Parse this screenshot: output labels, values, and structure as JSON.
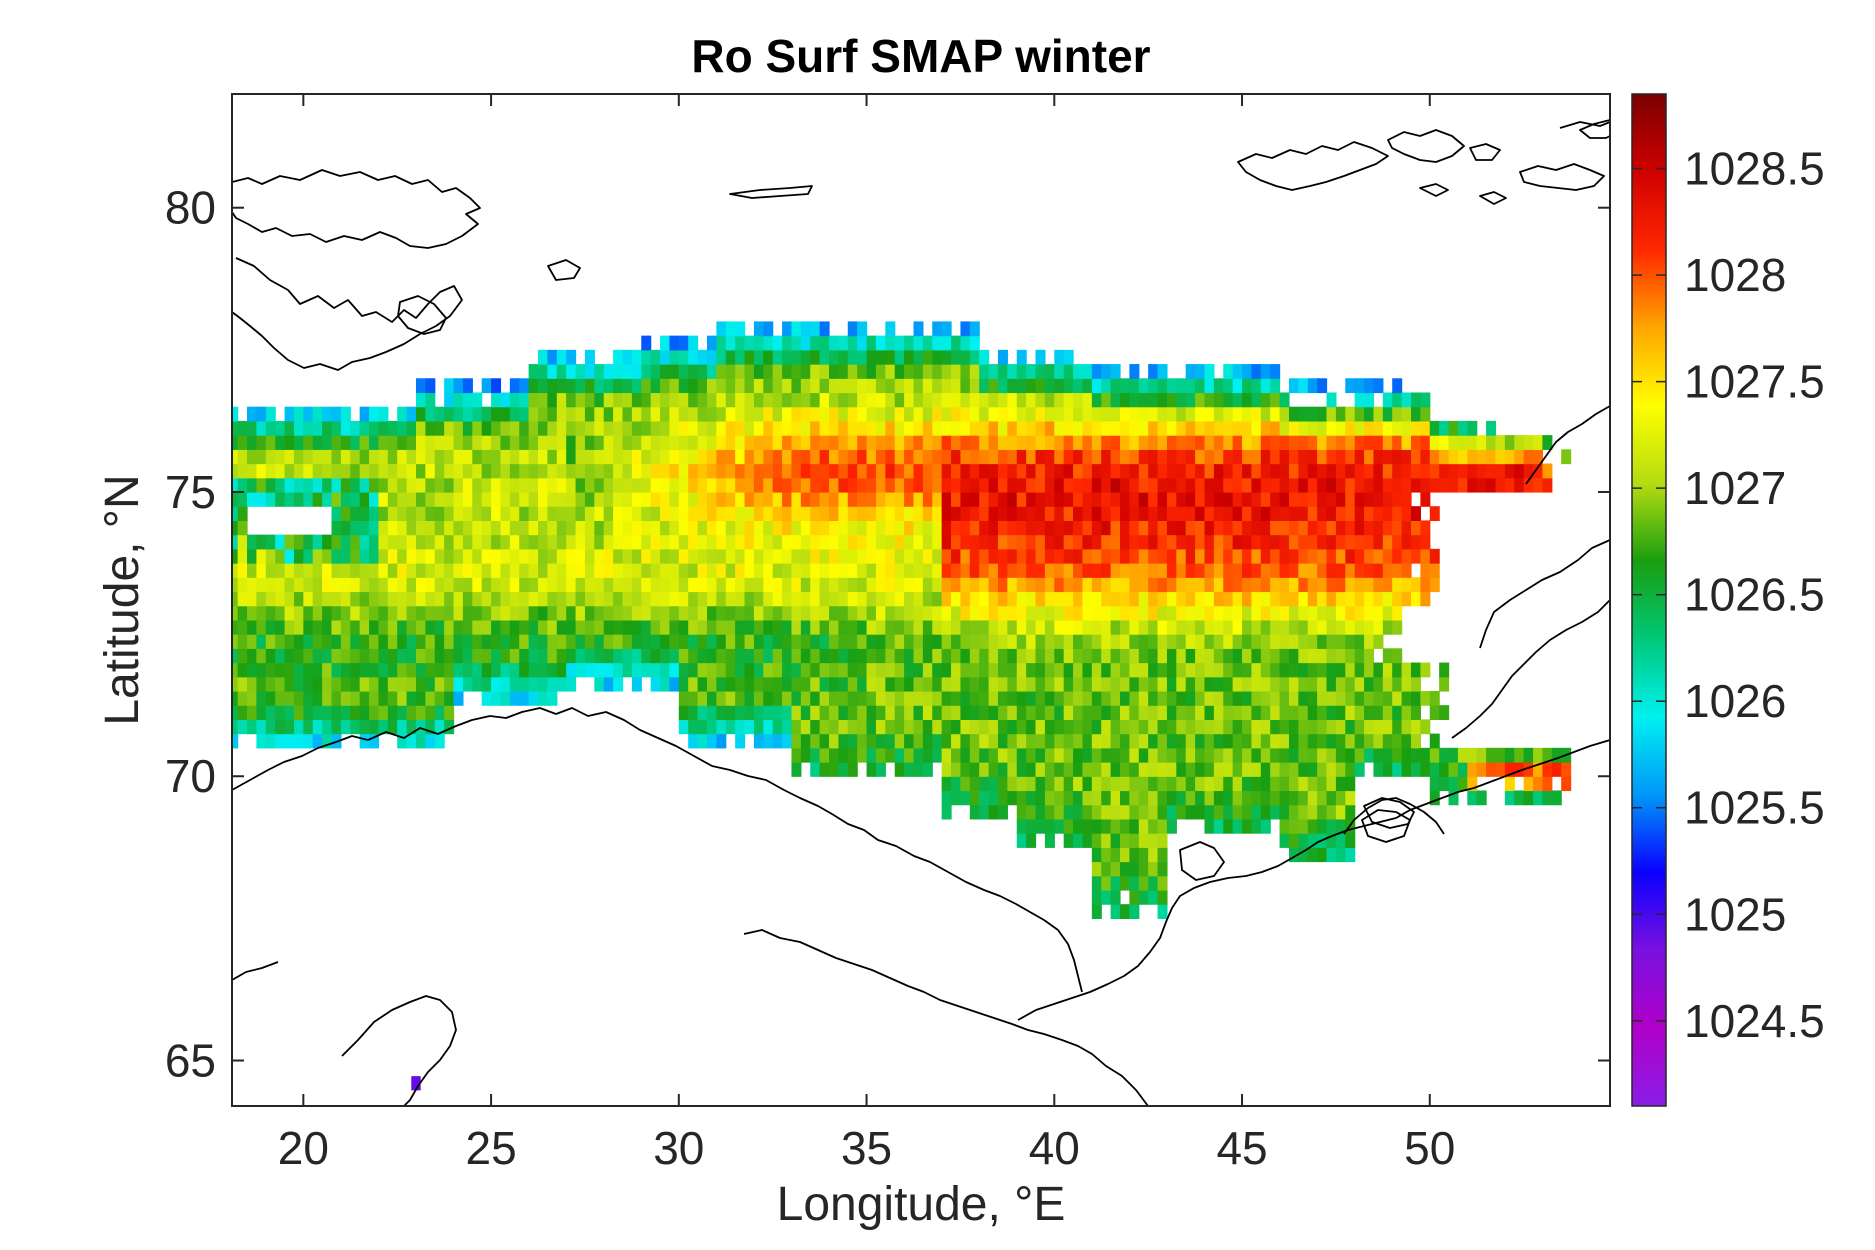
{
  "title": "Ro Surf SMAP winter",
  "xlabel": "Longitude, °E",
  "ylabel": "Latitude, °N",
  "chart_data": {
    "type": "heatmap",
    "title": "Ro Surf SMAP winter",
    "xlabel": "Longitude, °E",
    "ylabel": "Latitude, °N",
    "xlim": [
      18.1,
      54.8
    ],
    "ylim": [
      64.2,
      82.0
    ],
    "xticks": [
      20,
      25,
      30,
      35,
      40,
      45,
      50
    ],
    "yticks": [
      65,
      70,
      75,
      80
    ],
    "xtick_labels": [
      "20",
      "25",
      "30",
      "35",
      "40",
      "45",
      "50"
    ],
    "ytick_labels": [
      "65",
      "70",
      "75",
      "80"
    ],
    "colorbar": {
      "range": [
        1024.1,
        1028.85
      ],
      "ticks": [
        1024.5,
        1025,
        1025.5,
        1026,
        1026.5,
        1027,
        1027.5,
        1028,
        1028.5
      ],
      "tick_labels": [
        "1024.5",
        "1025",
        "1025.5",
        "1026",
        "1026.5",
        "1027",
        "1027.5",
        "1028",
        "1028.5"
      ],
      "colormap": [
        "#8a1ee6",
        "#b000c8",
        "#7a10e0",
        "#0a00ff",
        "#0098f8",
        "#00f0f0",
        "#00c878",
        "#1a9e10",
        "#b4dc10",
        "#ffff00",
        "#ffa500",
        "#ff2800",
        "#d00000",
        "#7a0000"
      ]
    },
    "grid_resolution_deg": {
      "lon": 0.25,
      "lat": 0.25
    },
    "pattern_summary": "Winter surface density high (1027.5-1028.5) in band 74-76.5N between 28-47E; cooler 1026.5-1027 green band across 71-73N; low 1025-1026 along northern ice edge ~77.5N and southern coastal margin ~71N west of 27E; isolated low pixel near 23E 64.6N",
    "features": [
      {
        "lon": 36,
        "lat": 75.7,
        "value": 1028.1
      },
      {
        "lon": 42,
        "lat": 74.7,
        "value": 1027.9
      },
      {
        "lon": 22,
        "lat": 72.5,
        "value": 1026.8
      },
      {
        "lon": 30,
        "lat": 71.4,
        "value": 1026.1
      },
      {
        "lon": 35,
        "lat": 77.6,
        "value": 1025.3
      },
      {
        "lon": 52.5,
        "lat": 69.9,
        "value": 1028.2
      },
      {
        "lon": 23,
        "lat": 64.6,
        "value": 1024.9
      }
    ]
  }
}
